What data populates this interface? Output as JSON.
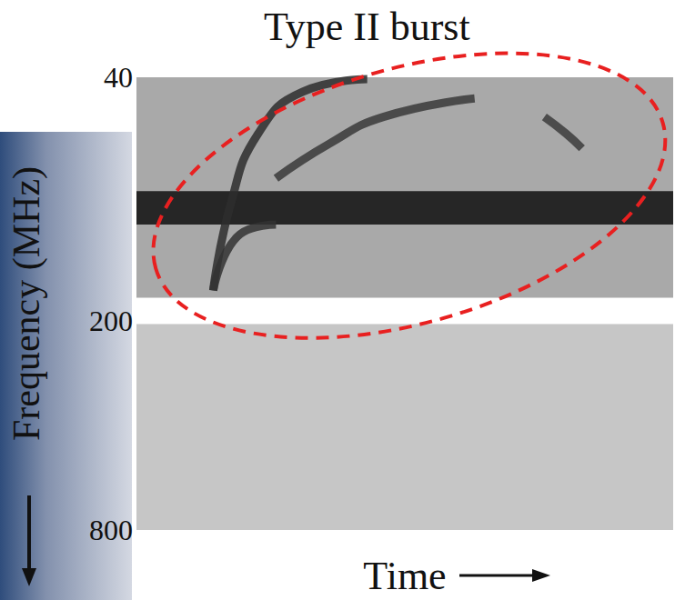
{
  "chart_data": {
    "type": "line",
    "title": "Type II burst",
    "xlabel": "Time",
    "ylabel": "Frequency (MHz)",
    "xlim": [
      0,
      100
    ],
    "ylim": [
      40,
      800
    ],
    "yticks": [
      40,
      200,
      800
    ],
    "log": "y",
    "grid": false,
    "tick_labels": "y",
    "bands": [
      {
        "ylim": [
          85,
          106
        ],
        "color": "#262626"
      },
      {
        "ylim": [
          172,
          205
        ],
        "color": "#ffffff"
      },
      {
        "ylim": [
          205,
          800
        ],
        "color": "#c6c6c6"
      }
    ],
    "series": [
      {
        "x": [
          14.3,
          17.6,
          22.7,
          31,
          43
        ],
        "values": [
          164,
          92,
          58,
          44,
          40.5
        ],
        "color": "#2e2e2e"
      },
      {
        "x": [
          26,
          36,
          46,
          63
        ],
        "values": [
          78,
          62,
          52,
          46
        ],
        "color": "#3a3a3a"
      },
      {
        "x": [
          14.3,
          19.3,
          26
        ],
        "values": [
          164,
          113,
          106
        ],
        "color": "#333333"
      },
      {
        "x": [
          76,
          80,
          83
        ],
        "values": [
          52,
          58,
          64
        ],
        "color": "#3c3c3c"
      }
    ]
  }
}
